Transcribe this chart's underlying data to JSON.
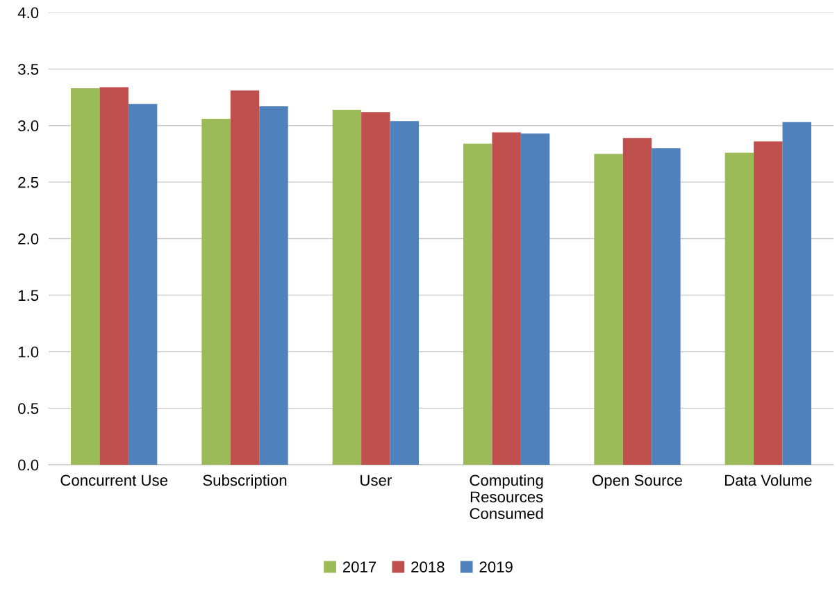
{
  "chart_data": {
    "type": "bar",
    "categories": [
      "Concurrent Use",
      "Subscription",
      "User",
      "Computing\nResources\nConsumed",
      "Open Source",
      "Data Volume"
    ],
    "series": [
      {
        "name": "2017",
        "color": "#9bbb59",
        "values": [
          3.33,
          3.06,
          3.14,
          2.84,
          2.75,
          2.76
        ]
      },
      {
        "name": "2018",
        "color": "#c0504d",
        "values": [
          3.34,
          3.31,
          3.12,
          2.94,
          2.89,
          2.86
        ]
      },
      {
        "name": "2019",
        "color": "#4f81bd",
        "values": [
          3.19,
          3.17,
          3.04,
          2.93,
          2.8,
          3.03
        ]
      }
    ],
    "ylim": [
      0,
      4
    ],
    "yticks": [
      {
        "value": 0,
        "label": "0.0"
      },
      {
        "value": 0.5,
        "label": "0.5"
      },
      {
        "value": 1,
        "label": "1.0"
      },
      {
        "value": 1.5,
        "label": "1.5"
      },
      {
        "value": 2,
        "label": "2.0"
      },
      {
        "value": 2.5,
        "label": "2.5"
      },
      {
        "value": 3,
        "label": "3.0"
      },
      {
        "value": 3.5,
        "label": "3.5"
      },
      {
        "value": 4,
        "label": "4.0"
      }
    ],
    "grid": "y",
    "legend": "bottom"
  }
}
